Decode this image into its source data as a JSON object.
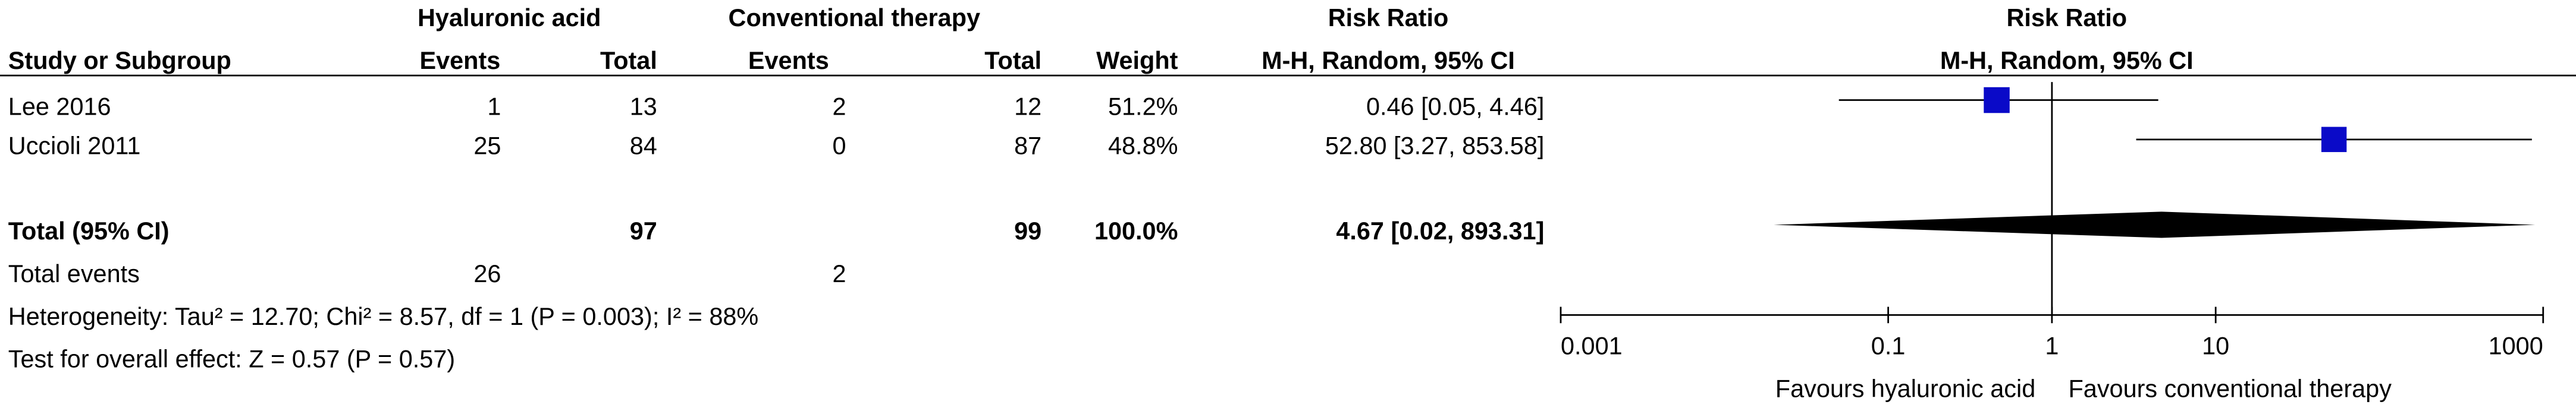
{
  "chart_data": {
    "type": "forest",
    "group_headers": [
      "Hyaluronic acid",
      "Conventional therapy",
      "Risk Ratio",
      "Risk Ratio"
    ],
    "columns": [
      "Study or Subgroup",
      "Events",
      "Total",
      "Events",
      "Total",
      "Weight",
      "M-H, Random, 95% CI",
      "M-H, Random, 95% CI"
    ],
    "studies": [
      {
        "name": "Lee 2016",
        "events1": 1,
        "total1": 13,
        "events2": 2,
        "total2": 12,
        "weight": 51.2,
        "weight_label": "51.2%",
        "value": 0.46,
        "lower": 0.05,
        "upper": 4.46,
        "value_label": "0.46 [0.05, 4.46]"
      },
      {
        "name": "Uccioli 2011",
        "events1": 25,
        "total1": 84,
        "events2": 0,
        "total2": 87,
        "weight": 48.8,
        "weight_label": "48.8%",
        "value": 52.8,
        "lower": 3.27,
        "upper": 853.58,
        "value_label": "52.80 [3.27, 853.58]"
      }
    ],
    "total": {
      "name": "Total (95% CI)",
      "total1": 97,
      "total2": 99,
      "weight": 100.0,
      "weight_label": "100.0%",
      "value": 4.67,
      "lower": 0.02,
      "upper": 893.31,
      "value_label": "4.67 [0.02, 893.31]"
    },
    "total_events": {
      "name": "Total events",
      "events1": 26,
      "events2": 2
    },
    "heterogeneity": "Heterogeneity: Tau² = 12.70; Chi² = 8.57, df = 1 (P = 0.003); I² = 88%",
    "overall_effect": "Test for overall effect: Z = 0.57 (P = 0.57)",
    "xlim": [
      0.001,
      1000
    ],
    "xticks": [
      0.001,
      0.1,
      1,
      10,
      1000
    ],
    "log_scale": true,
    "favours": [
      "Favours hyaluronic acid",
      "Favours conventional therapy"
    ],
    "color": "#0a0ac8"
  }
}
